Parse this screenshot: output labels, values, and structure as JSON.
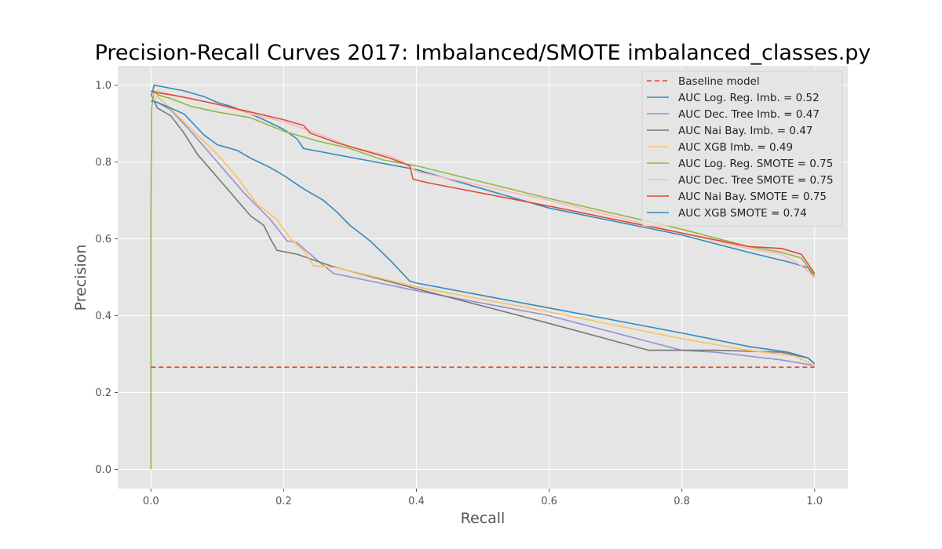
{
  "chart_data": {
    "type": "line",
    "title": "Precision-Recall Curves 2017: Imbalanced/SMOTE imbalanced_classes.py",
    "xlabel": "Recall",
    "ylabel": "Precision",
    "xlim": [
      -0.05,
      1.05
    ],
    "ylim": [
      -0.05,
      1.05
    ],
    "xticks": [
      "0.0",
      "0.2",
      "0.4",
      "0.6",
      "0.8",
      "1.0"
    ],
    "yticks": [
      "0.0",
      "0.2",
      "0.4",
      "0.6",
      "0.8",
      "1.0"
    ],
    "grid": true,
    "legend_position": "top-right",
    "baseline": {
      "name": "Baseline model",
      "color": "#E24A33",
      "dash": true,
      "points": [
        [
          0.0,
          0.266
        ],
        [
          1.0,
          0.266
        ]
      ]
    },
    "series": [
      {
        "name": "AUC Log. Reg. Imb. = 0.52",
        "color": "#348ABD",
        "points": [
          [
            0.0,
            0.97
          ],
          [
            0.005,
            1.0
          ],
          [
            0.02,
            0.995
          ],
          [
            0.05,
            0.985
          ],
          [
            0.08,
            0.97
          ],
          [
            0.1,
            0.955
          ],
          [
            0.12,
            0.945
          ],
          [
            0.15,
            0.925
          ],
          [
            0.17,
            0.91
          ],
          [
            0.2,
            0.885
          ],
          [
            0.22,
            0.86
          ],
          [
            0.23,
            0.835
          ],
          [
            0.4,
            0.78
          ],
          [
            0.6,
            0.68
          ],
          [
            0.8,
            0.61
          ],
          [
            0.9,
            0.565
          ],
          [
            0.96,
            0.54
          ],
          [
            0.99,
            0.525
          ],
          [
            1.0,
            0.5
          ]
        ]
      },
      {
        "name": "AUC Dec. Tree Imb. = 0.47",
        "color": "#988ED5",
        "points": [
          [
            0.0,
            0.96
          ],
          [
            0.01,
            0.955
          ],
          [
            0.03,
            0.935
          ],
          [
            0.06,
            0.88
          ],
          [
            0.1,
            0.8
          ],
          [
            0.14,
            0.72
          ],
          [
            0.18,
            0.65
          ],
          [
            0.205,
            0.595
          ],
          [
            0.22,
            0.59
          ],
          [
            0.25,
            0.545
          ],
          [
            0.275,
            0.51
          ],
          [
            0.4,
            0.465
          ],
          [
            0.6,
            0.4
          ],
          [
            0.8,
            0.31
          ],
          [
            0.85,
            0.305
          ],
          [
            0.9,
            0.295
          ],
          [
            0.95,
            0.285
          ],
          [
            1.0,
            0.27
          ]
        ]
      },
      {
        "name": "AUC Nai Bay. Imb. = 0.47",
        "color": "#777777",
        "points": [
          [
            0.0,
            0.975
          ],
          [
            0.01,
            0.94
          ],
          [
            0.03,
            0.92
          ],
          [
            0.05,
            0.875
          ],
          [
            0.07,
            0.82
          ],
          [
            0.09,
            0.78
          ],
          [
            0.11,
            0.74
          ],
          [
            0.13,
            0.7
          ],
          [
            0.15,
            0.66
          ],
          [
            0.17,
            0.635
          ],
          [
            0.18,
            0.6
          ],
          [
            0.19,
            0.57
          ],
          [
            0.22,
            0.56
          ],
          [
            0.27,
            0.53
          ],
          [
            0.4,
            0.47
          ],
          [
            0.6,
            0.38
          ],
          [
            0.75,
            0.31
          ],
          [
            0.85,
            0.31
          ],
          [
            0.95,
            0.305
          ],
          [
            0.99,
            0.29
          ],
          [
            1.0,
            0.275
          ]
        ]
      },
      {
        "name": "AUC XGB Imb. = 0.49",
        "color": "#FBC15E",
        "points": [
          [
            0.0,
            0.955
          ],
          [
            0.01,
            0.97
          ],
          [
            0.02,
            0.955
          ],
          [
            0.04,
            0.92
          ],
          [
            0.07,
            0.87
          ],
          [
            0.1,
            0.82
          ],
          [
            0.13,
            0.76
          ],
          [
            0.16,
            0.69
          ],
          [
            0.19,
            0.65
          ],
          [
            0.21,
            0.6
          ],
          [
            0.23,
            0.57
          ],
          [
            0.245,
            0.53
          ],
          [
            0.28,
            0.525
          ],
          [
            0.4,
            0.475
          ],
          [
            0.6,
            0.41
          ],
          [
            0.8,
            0.34
          ],
          [
            0.9,
            0.31
          ],
          [
            0.97,
            0.295
          ],
          [
            1.0,
            0.27
          ]
        ]
      },
      {
        "name": "AUC Log. Reg. SMOTE = 0.75",
        "color": "#8EBA42",
        "points": [
          [
            0.0,
            0.0
          ],
          [
            0.0,
            0.67
          ],
          [
            0.001,
            0.94
          ],
          [
            0.005,
            0.985
          ],
          [
            0.01,
            0.975
          ],
          [
            0.03,
            0.965
          ],
          [
            0.06,
            0.945
          ],
          [
            0.1,
            0.93
          ],
          [
            0.15,
            0.915
          ],
          [
            0.2,
            0.88
          ],
          [
            0.25,
            0.855
          ],
          [
            0.3,
            0.835
          ],
          [
            0.35,
            0.805
          ],
          [
            0.4,
            0.79
          ],
          [
            0.6,
            0.705
          ],
          [
            0.8,
            0.625
          ],
          [
            0.9,
            0.58
          ],
          [
            0.95,
            0.565
          ],
          [
            0.98,
            0.55
          ],
          [
            1.0,
            0.505
          ]
        ]
      },
      {
        "name": "AUC Dec. Tree SMOTE = 0.75",
        "color": "#FFB5B8",
        "points": [
          [
            0.0,
            0.97
          ],
          [
            0.01,
            0.985
          ],
          [
            0.03,
            0.975
          ],
          [
            0.06,
            0.965
          ],
          [
            0.1,
            0.95
          ],
          [
            0.15,
            0.925
          ],
          [
            0.2,
            0.905
          ],
          [
            0.25,
            0.875
          ],
          [
            0.3,
            0.84
          ],
          [
            0.36,
            0.815
          ],
          [
            0.38,
            0.8
          ],
          [
            0.4,
            0.775
          ],
          [
            0.6,
            0.7
          ],
          [
            0.8,
            0.615
          ],
          [
            0.9,
            0.575
          ],
          [
            0.95,
            0.56
          ],
          [
            0.98,
            0.53
          ],
          [
            1.0,
            0.5
          ]
        ]
      },
      {
        "name": "AUC Nai Bay. SMOTE = 0.75",
        "color": "#E24A33",
        "points": [
          [
            0.0,
            0.985
          ],
          [
            0.01,
            0.98
          ],
          [
            0.03,
            0.975
          ],
          [
            0.06,
            0.965
          ],
          [
            0.1,
            0.95
          ],
          [
            0.15,
            0.93
          ],
          [
            0.2,
            0.91
          ],
          [
            0.23,
            0.895
          ],
          [
            0.24,
            0.875
          ],
          [
            0.28,
            0.85
          ],
          [
            0.32,
            0.83
          ],
          [
            0.36,
            0.81
          ],
          [
            0.39,
            0.79
          ],
          [
            0.395,
            0.755
          ],
          [
            0.42,
            0.745
          ],
          [
            0.6,
            0.685
          ],
          [
            0.8,
            0.615
          ],
          [
            0.9,
            0.58
          ],
          [
            0.95,
            0.575
          ],
          [
            0.98,
            0.56
          ],
          [
            1.0,
            0.51
          ]
        ]
      },
      {
        "name": "AUC XGB SMOTE = 0.74",
        "color": "#348ABD",
        "points": [
          [
            0.0,
            0.96
          ],
          [
            0.01,
            0.955
          ],
          [
            0.03,
            0.94
          ],
          [
            0.05,
            0.925
          ],
          [
            0.08,
            0.87
          ],
          [
            0.1,
            0.845
          ],
          [
            0.13,
            0.83
          ],
          [
            0.15,
            0.81
          ],
          [
            0.18,
            0.785
          ],
          [
            0.2,
            0.765
          ],
          [
            0.23,
            0.73
          ],
          [
            0.26,
            0.7
          ],
          [
            0.28,
            0.67
          ],
          [
            0.3,
            0.635
          ],
          [
            0.33,
            0.595
          ],
          [
            0.36,
            0.545
          ],
          [
            0.39,
            0.49
          ],
          [
            0.4,
            0.485
          ],
          [
            0.6,
            0.42
          ],
          [
            0.8,
            0.355
          ],
          [
            0.9,
            0.32
          ],
          [
            0.96,
            0.305
          ],
          [
            0.99,
            0.29
          ],
          [
            1.0,
            0.275
          ]
        ]
      }
    ]
  }
}
